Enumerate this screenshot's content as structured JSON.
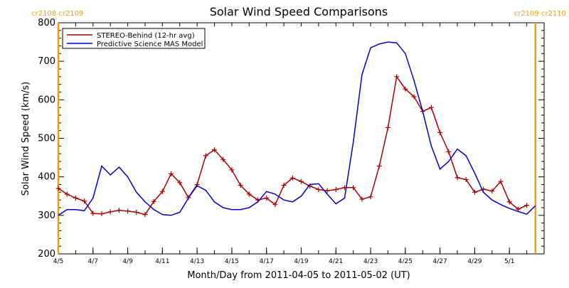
{
  "chart_data": {
    "type": "line",
    "title": "Solar Wind Speed Comparisons",
    "xlabel": "Month/Day from 2011-04-05 to 2011-05-02 (UT)",
    "ylabel": "Solar Wind Speed (km/s)",
    "xlim": [
      "2011-04-05",
      "2011-05-03"
    ],
    "ylim": [
      200,
      800
    ],
    "y_ticks": [
      200,
      300,
      400,
      500,
      600,
      700,
      800
    ],
    "x_tick_labels": [
      {
        "date": "2011-04-05",
        "label": "4/5"
      },
      {
        "date": "2011-04-07",
        "label": "4/7"
      },
      {
        "date": "2011-04-09",
        "label": "4/9"
      },
      {
        "date": "2011-04-11",
        "label": "4/11"
      },
      {
        "date": "2011-04-13",
        "label": "4/13"
      },
      {
        "date": "2011-04-15",
        "label": "4/15"
      },
      {
        "date": "2011-04-17",
        "label": "4/17"
      },
      {
        "date": "2011-04-19",
        "label": "4/19"
      },
      {
        "date": "2011-04-21",
        "label": "4/21"
      },
      {
        "date": "2011-04-23",
        "label": "4/23"
      },
      {
        "date": "2011-04-25",
        "label": "4/25"
      },
      {
        "date": "2011-04-27",
        "label": "4/27"
      },
      {
        "date": "2011-04-29",
        "label": "4/29"
      },
      {
        "date": "2011-05-01",
        "label": "5/1"
      }
    ],
    "carrington_markers": [
      {
        "date": "2011-04-05",
        "label": "cr2108 cr2109",
        "color": "#f39c12",
        "side": "left"
      },
      {
        "date": "2011-05-02T12:00",
        "label": "cr2109 cr2110",
        "color": "#f39c12",
        "side": "right"
      }
    ],
    "legend_position": "top-left",
    "series": [
      {
        "name": "STEREO-Behind (12-hr avg)",
        "color": "#aa0000",
        "marker": "plus",
        "points": [
          [
            "2011-04-05T00:00",
            370
          ],
          [
            "2011-04-05T12:00",
            355
          ],
          [
            "2011-04-06T00:00",
            345
          ],
          [
            "2011-04-06T12:00",
            337
          ],
          [
            "2011-04-07T00:00",
            305
          ],
          [
            "2011-04-07T12:00",
            304
          ],
          [
            "2011-04-08T00:00",
            309
          ],
          [
            "2011-04-08T12:00",
            313
          ],
          [
            "2011-04-09T00:00",
            311
          ],
          [
            "2011-04-09T12:00",
            308
          ],
          [
            "2011-04-10T00:00",
            302
          ],
          [
            "2011-04-10T12:00",
            336
          ],
          [
            "2011-04-11T00:00",
            362
          ],
          [
            "2011-04-11T12:00",
            408
          ],
          [
            "2011-04-12T00:00",
            385
          ],
          [
            "2011-04-12T12:00",
            346
          ],
          [
            "2011-04-13T00:00",
            380
          ],
          [
            "2011-04-13T12:00",
            455
          ],
          [
            "2011-04-14T00:00",
            470
          ],
          [
            "2011-04-14T12:00",
            445
          ],
          [
            "2011-04-15T00:00",
            418
          ],
          [
            "2011-04-15T12:00",
            378
          ],
          [
            "2011-04-16T00:00",
            355
          ],
          [
            "2011-04-16T12:00",
            340
          ],
          [
            "2011-04-17T00:00",
            345
          ],
          [
            "2011-04-17T12:00",
            328
          ],
          [
            "2011-04-18T00:00",
            378
          ],
          [
            "2011-04-18T12:00",
            397
          ],
          [
            "2011-04-19T00:00",
            388
          ],
          [
            "2011-04-19T12:00",
            376
          ],
          [
            "2011-04-20T00:00",
            367
          ],
          [
            "2011-04-20T12:00",
            364
          ],
          [
            "2011-04-21T00:00",
            367
          ],
          [
            "2011-04-21T12:00",
            372
          ],
          [
            "2011-04-22T00:00",
            372
          ],
          [
            "2011-04-22T12:00",
            342
          ],
          [
            "2011-04-23T00:00",
            348
          ],
          [
            "2011-04-23T12:00",
            428
          ],
          [
            "2011-04-24T00:00",
            528
          ],
          [
            "2011-04-24T12:00",
            660
          ],
          [
            "2011-04-25T00:00",
            628
          ],
          [
            "2011-04-25T12:00",
            608
          ],
          [
            "2011-04-26T00:00",
            570
          ],
          [
            "2011-04-26T12:00",
            580
          ],
          [
            "2011-04-27T00:00",
            515
          ],
          [
            "2011-04-27T12:00",
            465
          ],
          [
            "2011-04-28T00:00",
            398
          ],
          [
            "2011-04-28T12:00",
            393
          ],
          [
            "2011-04-29T00:00",
            360
          ],
          [
            "2011-04-29T12:00",
            368
          ],
          [
            "2011-04-30T00:00",
            363
          ],
          [
            "2011-04-30T12:00",
            388
          ],
          [
            "2011-05-01T00:00",
            335
          ],
          [
            "2011-05-01T12:00",
            316
          ],
          [
            "2011-05-02T00:00",
            326
          ]
        ]
      },
      {
        "name": "Predictive Science MAS Model",
        "color": "#0000cc",
        "marker": "none",
        "points": [
          [
            "2011-04-05T00:00",
            300
          ],
          [
            "2011-04-05T12:00",
            315
          ],
          [
            "2011-04-06T00:00",
            315
          ],
          [
            "2011-04-06T12:00",
            312
          ],
          [
            "2011-04-07T00:00",
            345
          ],
          [
            "2011-04-07T12:00",
            428
          ],
          [
            "2011-04-08T00:00",
            405
          ],
          [
            "2011-04-08T12:00",
            425
          ],
          [
            "2011-04-09T00:00",
            400
          ],
          [
            "2011-04-09T12:00",
            360
          ],
          [
            "2011-04-10T00:00",
            335
          ],
          [
            "2011-04-10T12:00",
            315
          ],
          [
            "2011-04-11T00:00",
            302
          ],
          [
            "2011-04-11T12:00",
            300
          ],
          [
            "2011-04-12T00:00",
            308
          ],
          [
            "2011-04-12T12:00",
            345
          ],
          [
            "2011-04-13T00:00",
            377
          ],
          [
            "2011-04-13T12:00",
            365
          ],
          [
            "2011-04-14T00:00",
            335
          ],
          [
            "2011-04-14T12:00",
            320
          ],
          [
            "2011-04-15T00:00",
            315
          ],
          [
            "2011-04-15T12:00",
            315
          ],
          [
            "2011-04-16T00:00",
            320
          ],
          [
            "2011-04-16T12:00",
            335
          ],
          [
            "2011-04-17T00:00",
            362
          ],
          [
            "2011-04-17T12:00",
            355
          ],
          [
            "2011-04-18T00:00",
            340
          ],
          [
            "2011-04-18T12:00",
            335
          ],
          [
            "2011-04-19T00:00",
            350
          ],
          [
            "2011-04-19T12:00",
            380
          ],
          [
            "2011-04-20T00:00",
            382
          ],
          [
            "2011-04-20T12:00",
            355
          ],
          [
            "2011-04-21T00:00",
            330
          ],
          [
            "2011-04-21T12:00",
            345
          ],
          [
            "2011-04-22T00:00",
            490
          ],
          [
            "2011-04-22T12:00",
            665
          ],
          [
            "2011-04-23T00:00",
            735
          ],
          [
            "2011-04-23T12:00",
            745
          ],
          [
            "2011-04-24T00:00",
            750
          ],
          [
            "2011-04-24T12:00",
            748
          ],
          [
            "2011-04-25T00:00",
            720
          ],
          [
            "2011-04-25T12:00",
            650
          ],
          [
            "2011-04-26T00:00",
            570
          ],
          [
            "2011-04-26T12:00",
            480
          ],
          [
            "2011-04-27T00:00",
            420
          ],
          [
            "2011-04-27T12:00",
            440
          ],
          [
            "2011-04-28T00:00",
            472
          ],
          [
            "2011-04-28T12:00",
            455
          ],
          [
            "2011-04-29T00:00",
            410
          ],
          [
            "2011-04-29T12:00",
            360
          ],
          [
            "2011-04-30T00:00",
            340
          ],
          [
            "2011-04-30T12:00",
            328
          ],
          [
            "2011-05-01T00:00",
            318
          ],
          [
            "2011-05-01T12:00",
            310
          ],
          [
            "2011-05-02T00:00",
            303
          ],
          [
            "2011-05-02T12:00",
            325
          ]
        ]
      }
    ]
  }
}
